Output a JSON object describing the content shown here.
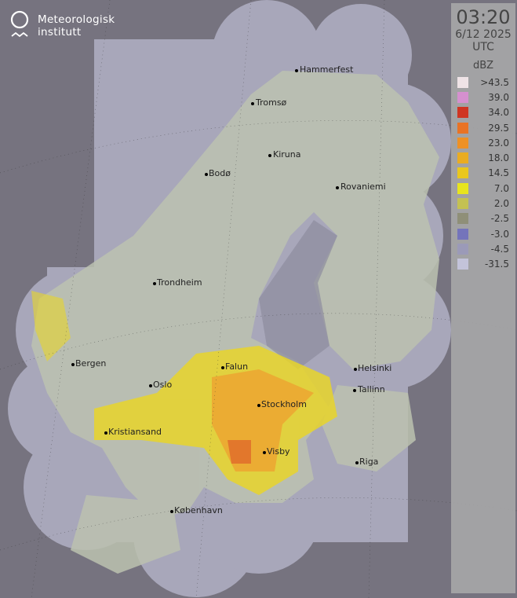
{
  "brand": {
    "name_line1": "Meteorologisk",
    "name_line2": "institutt"
  },
  "legend": {
    "time": "03:20",
    "date": "6/12 2025",
    "timezone": "UTC",
    "unit": "dBZ",
    "items": [
      {
        "label": ">43.5",
        "color": "#efe3e6"
      },
      {
        "label": "39.0",
        "color": "#d590cf"
      },
      {
        "label": "34.0",
        "color": "#cf3522"
      },
      {
        "label": "29.5",
        "color": "#e97325"
      },
      {
        "label": "23.0",
        "color": "#ee9125"
      },
      {
        "label": "18.0",
        "color": "#eaac22"
      },
      {
        "label": "14.5",
        "color": "#eac71d"
      },
      {
        "label": "7.0",
        "color": "#e8e41d"
      },
      {
        "label": "2.0",
        "color": "#c4c152"
      },
      {
        "label": "-2.5",
        "color": "#8f8f78"
      },
      {
        "label": "-3.0",
        "color": "#7474bb"
      },
      {
        "label": "-4.5",
        "color": "#9b9ab8"
      },
      {
        "label": "-31.5",
        "color": "#c3c3da"
      }
    ]
  },
  "cities": [
    {
      "name": "Hammerfest"
    },
    {
      "name": "Tromsø"
    },
    {
      "name": "Kiruna"
    },
    {
      "name": "Bodø"
    },
    {
      "name": "Rovaniemi"
    },
    {
      "name": "Trondheim"
    },
    {
      "name": "Bergen"
    },
    {
      "name": "Falun"
    },
    {
      "name": "Oslo"
    },
    {
      "name": "Helsinki"
    },
    {
      "name": "Tallinn"
    },
    {
      "name": "Stockholm"
    },
    {
      "name": "Kristiansand"
    },
    {
      "name": "Visby"
    },
    {
      "name": "Riga"
    },
    {
      "name": "København"
    }
  ],
  "colors": {
    "background": "#76737f",
    "coverage": "#a8a7ba",
    "land": "#bcc2b0"
  }
}
